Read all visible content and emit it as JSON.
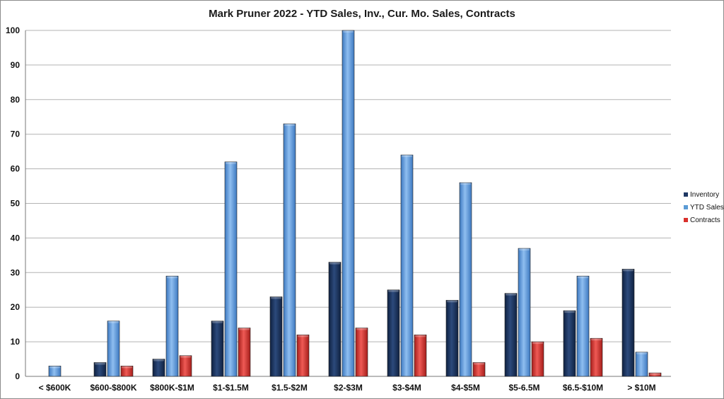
{
  "chart_data": {
    "type": "bar",
    "title": "Mark Pruner 2022 - YTD Sales, Inv., Cur. Mo. Sales, Contracts",
    "xlabel": "",
    "ylabel": "",
    "ylim": [
      0,
      100
    ],
    "yticks": [
      0,
      10,
      20,
      30,
      40,
      50,
      60,
      70,
      80,
      90,
      100
    ],
    "grid": true,
    "legend_position": "right",
    "categories": [
      "< $600K",
      "$600-$800K",
      "$800K-$1M",
      "$1-$1.5M",
      "$1.5-$2M",
      "$2-$3M",
      "$3-$4M",
      "$4-$5M",
      "$5-6.5M",
      "$6.5-$10M",
      "> $10M"
    ],
    "series": [
      {
        "name": "Inventory",
        "color": "#1f3864",
        "values": [
          0,
          4,
          5,
          16,
          23,
          33,
          25,
          22,
          24,
          19,
          31
        ]
      },
      {
        "name": "YTD Sales",
        "color": "#5b9bd5",
        "values": [
          3,
          16,
          29,
          62,
          73,
          100,
          64,
          56,
          37,
          29,
          7
        ]
      },
      {
        "name": "Contracts",
        "color": "#d9302c",
        "values": [
          0,
          3,
          6,
          14,
          12,
          14,
          12,
          4,
          10,
          11,
          1
        ]
      }
    ]
  }
}
